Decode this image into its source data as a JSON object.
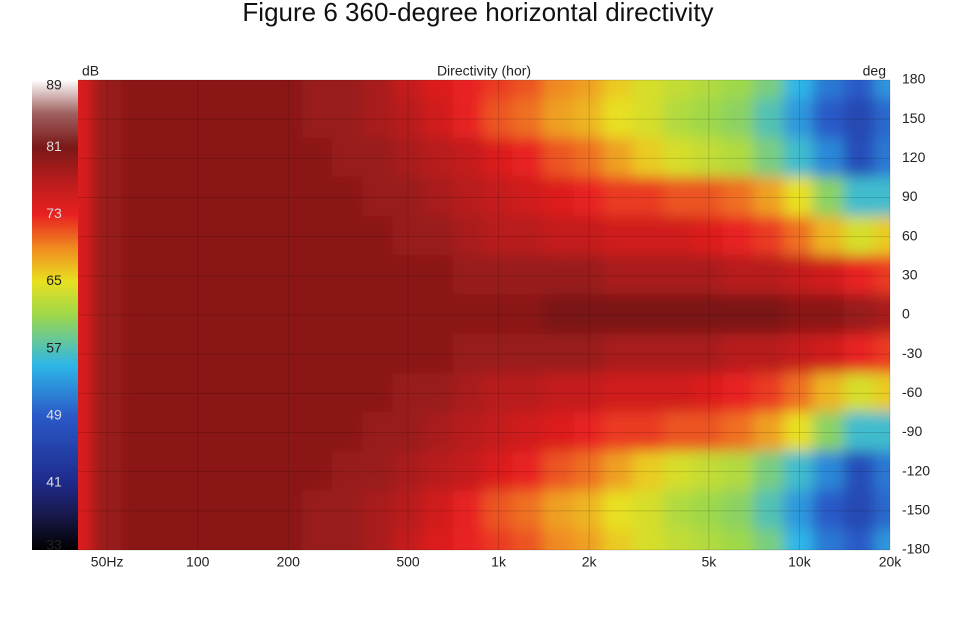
{
  "chart_data": {
    "type": "heatmap",
    "title": "Figure 6 360-degree horizontal directivity",
    "subtitle": "Directivity (hor)",
    "colorbar_label": "dB",
    "y_label": "deg",
    "x": [
      40,
      50,
      63,
      80,
      100,
      125,
      160,
      200,
      250,
      315,
      400,
      500,
      630,
      800,
      1000,
      1250,
      1600,
      2000,
      2500,
      3150,
      4000,
      5000,
      6300,
      8000,
      10000,
      12500,
      16000,
      20000
    ],
    "y": [
      180,
      150,
      120,
      90,
      60,
      30,
      0,
      -30,
      -60,
      -90,
      -120,
      -150,
      -180
    ],
    "values": [
      [
        74,
        79,
        80,
        80,
        80,
        80,
        80,
        80,
        79,
        79,
        78,
        76,
        74,
        73,
        72,
        71,
        69,
        68,
        66,
        64,
        63,
        62,
        61,
        59,
        55,
        51,
        49,
        53
      ],
      [
        74,
        79,
        80,
        80,
        80,
        80,
        80,
        80,
        79,
        79,
        78,
        77,
        75,
        73,
        71,
        70,
        68,
        67,
        65,
        64,
        62,
        61,
        60,
        57,
        53,
        49,
        46,
        50
      ],
      [
        74,
        79,
        80,
        80,
        80,
        80,
        80,
        80,
        80,
        79,
        79,
        78,
        77,
        76,
        74,
        73,
        71,
        70,
        68,
        66,
        64,
        63,
        62,
        59,
        56,
        52,
        47,
        51
      ],
      [
        74,
        79,
        80,
        80,
        80,
        80,
        80,
        80,
        80,
        80,
        79,
        79,
        78,
        77,
        76,
        75,
        74,
        73,
        72,
        72,
        71,
        71,
        70,
        68,
        65,
        60,
        56,
        56
      ],
      [
        74,
        79,
        80,
        80,
        80,
        80,
        80,
        80,
        80,
        80,
        80,
        79,
        79,
        78,
        77,
        77,
        76,
        76,
        75,
        75,
        75,
        74,
        73,
        72,
        70,
        67,
        64,
        66
      ],
      [
        74,
        79,
        80,
        80,
        80,
        80,
        80,
        80,
        80,
        80,
        80,
        80,
        80,
        79,
        79,
        79,
        79,
        79,
        78,
        78,
        78,
        78,
        77,
        77,
        76,
        75,
        73,
        72
      ],
      [
        74,
        79,
        80,
        80,
        80,
        80,
        80,
        80,
        80,
        80,
        80,
        80,
        80,
        80,
        80,
        80,
        81,
        81,
        81,
        81,
        81,
        81,
        81,
        81,
        80,
        80,
        79,
        78
      ],
      [
        74,
        79,
        80,
        80,
        80,
        80,
        80,
        80,
        80,
        80,
        80,
        80,
        80,
        79,
        79,
        79,
        79,
        79,
        78,
        78,
        78,
        78,
        77,
        77,
        76,
        75,
        73,
        72
      ],
      [
        74,
        79,
        80,
        80,
        80,
        80,
        80,
        80,
        80,
        80,
        80,
        79,
        79,
        78,
        77,
        77,
        76,
        76,
        75,
        75,
        75,
        74,
        73,
        72,
        70,
        67,
        64,
        66
      ],
      [
        74,
        79,
        80,
        80,
        80,
        80,
        80,
        80,
        80,
        80,
        79,
        79,
        78,
        77,
        76,
        75,
        74,
        73,
        72,
        72,
        71,
        71,
        70,
        68,
        65,
        60,
        56,
        56
      ],
      [
        74,
        79,
        80,
        80,
        80,
        80,
        80,
        80,
        80,
        79,
        79,
        78,
        77,
        76,
        74,
        73,
        71,
        70,
        68,
        66,
        64,
        63,
        62,
        59,
        56,
        52,
        47,
        51
      ],
      [
        74,
        79,
        80,
        80,
        80,
        80,
        80,
        80,
        79,
        79,
        78,
        77,
        75,
        73,
        71,
        70,
        68,
        67,
        65,
        64,
        62,
        61,
        60,
        57,
        53,
        49,
        46,
        50
      ],
      [
        74,
        79,
        80,
        80,
        80,
        80,
        80,
        80,
        79,
        79,
        78,
        76,
        74,
        73,
        72,
        71,
        69,
        68,
        66,
        64,
        63,
        62,
        61,
        59,
        55,
        51,
        49,
        53
      ]
    ],
    "xlim": [
      40,
      20000
    ],
    "x_log": true,
    "xticks": [
      {
        "value": 50,
        "label": "50Hz"
      },
      100,
      200,
      500,
      {
        "value": 1000,
        "label": "1k"
      },
      {
        "value": 2000,
        "label": "2k"
      },
      {
        "value": 5000,
        "label": "5k"
      },
      {
        "value": 10000,
        "label": "10k"
      },
      {
        "value": 20000,
        "label": "20k"
      }
    ],
    "ylim": [
      -180,
      180
    ],
    "yticks": [
      180,
      150,
      120,
      90,
      60,
      30,
      0,
      -30,
      -60,
      -90,
      -120,
      -150,
      -180
    ],
    "clim": [
      33,
      89
    ],
    "cticks": [
      89,
      81,
      73,
      65,
      57,
      49,
      41,
      33
    ],
    "colorscale": [
      [
        33,
        "#000000"
      ],
      [
        37,
        "#181848"
      ],
      [
        41,
        "#1e2a8a"
      ],
      [
        49,
        "#2a5ac8"
      ],
      [
        55,
        "#2eb6e8"
      ],
      [
        61,
        "#9ed84a"
      ],
      [
        65,
        "#e8e020"
      ],
      [
        69,
        "#f08a20"
      ],
      [
        73,
        "#e82020"
      ],
      [
        77,
        "#b81c1c"
      ],
      [
        81,
        "#7a1818"
      ],
      [
        85,
        "#a06060"
      ],
      [
        89,
        "#ffffff"
      ]
    ],
    "grid": true
  }
}
